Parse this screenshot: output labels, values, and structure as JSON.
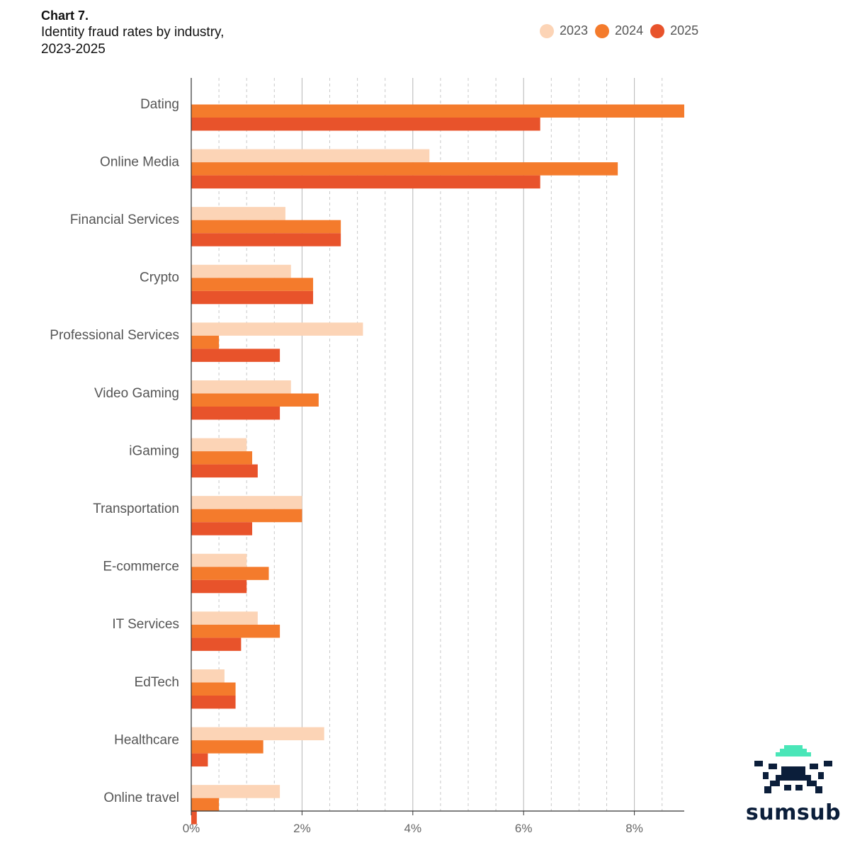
{
  "header": {
    "chart_label": "Chart 7.",
    "title": "Identity fraud rates by industry,\n2023-2025"
  },
  "legend": [
    {
      "label": "2023",
      "color": "#FCD4B6"
    },
    {
      "label": "2024",
      "color": "#F47B2C"
    },
    {
      "label": "2025",
      "color": "#E8532B"
    }
  ],
  "logo": {
    "text": "sumsub",
    "accent_color": "#4AE6B8",
    "dark_color": "#0B1E3A"
  },
  "chart_data": {
    "type": "bar",
    "orientation": "horizontal",
    "title": "Identity fraud rates by industry, 2023-2025",
    "xlabel": "",
    "ylabel": "",
    "xlim": [
      0,
      8.9
    ],
    "x_ticks": [
      0,
      2,
      4,
      6,
      8
    ],
    "x_tick_labels": [
      "0%",
      "2%",
      "4%",
      "6%",
      "8%"
    ],
    "grid": "vertical dashed minor, solid major",
    "categories": [
      "Dating",
      "Online Media",
      "Financial Services",
      "Crypto",
      "Professional Services",
      "Video Gaming",
      "iGaming",
      "Transportation",
      "E-commerce",
      "IT Services",
      "EdTech",
      "Healthcare",
      "Online travel"
    ],
    "series": [
      {
        "name": "2023",
        "color": "#FCD4B6",
        "values": [
          null,
          4.3,
          1.7,
          1.8,
          3.1,
          1.8,
          1.0,
          2.0,
          1.0,
          1.2,
          0.6,
          2.4,
          1.6
        ]
      },
      {
        "name": "2024",
        "color": "#F47B2C",
        "values": [
          8.9,
          7.7,
          2.7,
          2.2,
          0.5,
          2.3,
          1.1,
          2.0,
          1.4,
          1.6,
          0.8,
          1.3,
          0.5
        ]
      },
      {
        "name": "2025",
        "color": "#E8532B",
        "values": [
          6.3,
          6.3,
          2.7,
          2.2,
          1.6,
          1.6,
          1.2,
          1.1,
          1.0,
          0.9,
          0.8,
          0.3,
          0.1
        ]
      }
    ]
  }
}
